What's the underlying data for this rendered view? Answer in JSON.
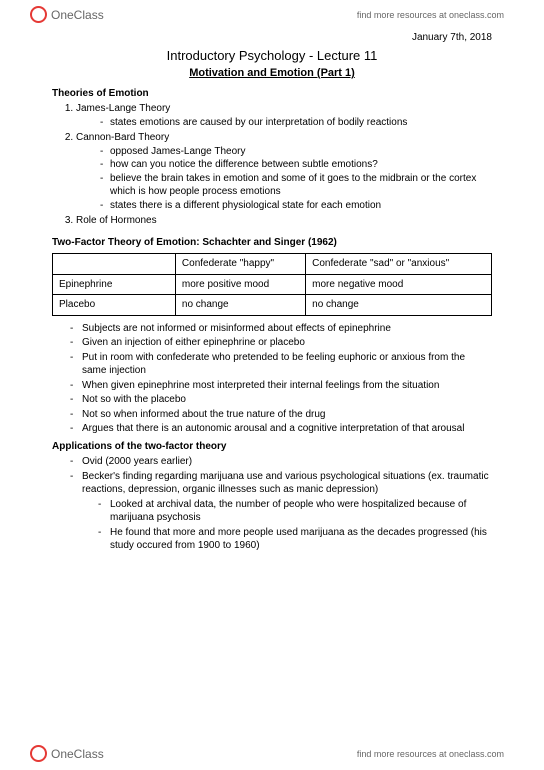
{
  "brand": {
    "name": "OneClass",
    "tagline": "find more resources at oneclass.com"
  },
  "date": "January 7th, 2018",
  "course": "Introductory Psychology - Lecture 11",
  "lectureTitle": "Motivation and Emotion (Part 1)",
  "theoriesHead": "Theories of Emotion",
  "theories": [
    {
      "name": "James-Lange Theory",
      "points": [
        "states emotions are caused by our interpretation of bodily reactions"
      ]
    },
    {
      "name": "Cannon-Bard Theory",
      "points": [
        "opposed James-Lange Theory",
        "how can you notice the difference between subtle emotions?",
        "believe the brain takes in emotion and some of it goes to the midbrain or the cortex which is how people process emotions",
        "states there is a different physiological state for each emotion"
      ]
    },
    {
      "name": "Role of Hormones",
      "points": []
    }
  ],
  "twoFactorHead": "Two-Factor Theory of Emotion: Schachter and Singer (1962)",
  "table": {
    "cols": [
      "",
      "Confederate \"happy\"",
      "Confederate \"sad\" or \"anxious\""
    ],
    "rows": [
      [
        "Epinephrine",
        "more positive mood",
        "more negative mood"
      ],
      [
        "Placebo",
        "no change",
        "no change"
      ]
    ]
  },
  "twoFactorNotes": [
    "Subjects are not informed or misinformed about effects of epinephrine",
    "Given an injection of either epinephrine or placebo",
    "Put in room with confederate who pretended to be feeling euphoric or anxious from the same injection",
    "When given epinephrine most interpreted their internal feelings from the situation",
    "Not so with the placebo",
    "Not so when informed about the true nature of the drug",
    "Argues that there is an autonomic arousal and a cognitive interpretation of that arousal"
  ],
  "appsHead": "Applications of the two-factor theory",
  "appsNotes": [
    "Ovid (2000 years earlier)",
    "Becker's finding regarding marijuana use and various psychological situations (ex. traumatic reactions, depression, organic illnesses such as manic depression)"
  ],
  "appsSubNotes": [
    "Looked at archival data, the number of people who were hospitalized because of marijuana psychosis",
    "He found that more and more people used marijuana as the decades progressed (his study occured from 1900 to 1960)"
  ]
}
